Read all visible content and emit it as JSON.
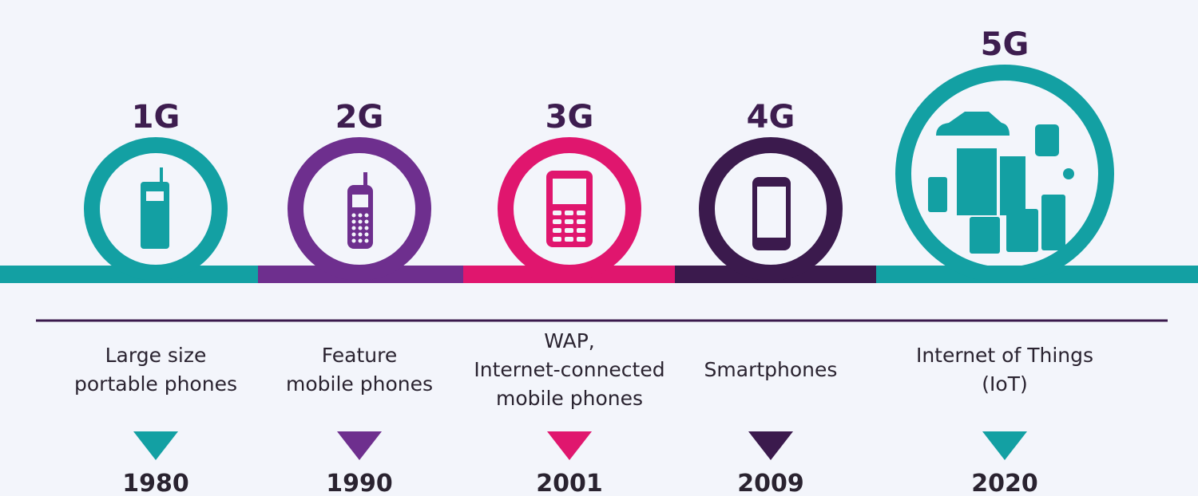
{
  "generations": [
    {
      "label": "1G",
      "description": [
        "Large size",
        "portable phones"
      ],
      "year": "1980",
      "color": "#13a0a3"
    },
    {
      "label": "2G",
      "description": [
        "Feature",
        "mobile phones"
      ],
      "year": "1990",
      "color": "#6e2f8e"
    },
    {
      "label": "3G",
      "description": [
        "WAP,",
        "Internet-connected",
        "mobile phones"
      ],
      "year": "2001",
      "color": "#e0166e"
    },
    {
      "label": "4G",
      "description": [
        "Smartphones"
      ],
      "year": "2009",
      "color": "#3b1a4d"
    },
    {
      "label": "5G",
      "description": [
        "Internet of Things",
        "(IoT)"
      ],
      "year": "2020",
      "color": "#13a0a3"
    }
  ]
}
